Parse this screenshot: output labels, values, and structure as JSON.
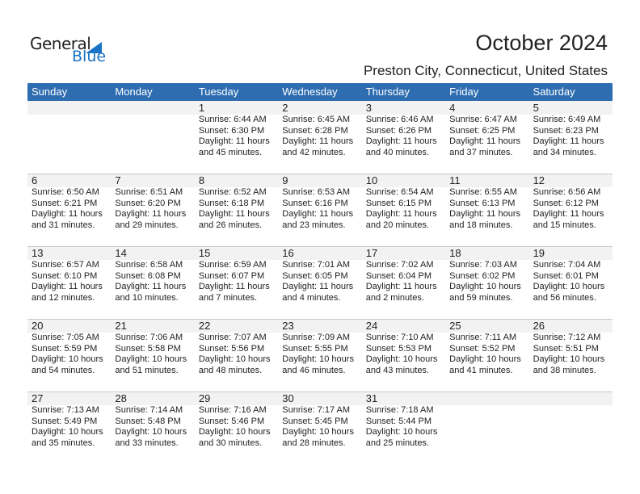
{
  "logo": {
    "general": "General",
    "blue": "Blue"
  },
  "title": "October 2024",
  "location": "Preston City, Connecticut, United States",
  "colors": {
    "header": "#2e6db0",
    "date_row": "#f2f2f2",
    "logo_blue": "#1a73c4"
  },
  "weekdays": [
    "Sunday",
    "Monday",
    "Tuesday",
    "Wednesday",
    "Thursday",
    "Friday",
    "Saturday"
  ],
  "weeks": [
    [
      null,
      null,
      {
        "day": "1",
        "sunrise": "Sunrise: 6:44 AM",
        "sunset": "Sunset: 6:30 PM",
        "daylight": "Daylight: 11 hours",
        "minutes": "and 45 minutes."
      },
      {
        "day": "2",
        "sunrise": "Sunrise: 6:45 AM",
        "sunset": "Sunset: 6:28 PM",
        "daylight": "Daylight: 11 hours",
        "minutes": "and 42 minutes."
      },
      {
        "day": "3",
        "sunrise": "Sunrise: 6:46 AM",
        "sunset": "Sunset: 6:26 PM",
        "daylight": "Daylight: 11 hours",
        "minutes": "and 40 minutes."
      },
      {
        "day": "4",
        "sunrise": "Sunrise: 6:47 AM",
        "sunset": "Sunset: 6:25 PM",
        "daylight": "Daylight: 11 hours",
        "minutes": "and 37 minutes."
      },
      {
        "day": "5",
        "sunrise": "Sunrise: 6:49 AM",
        "sunset": "Sunset: 6:23 PM",
        "daylight": "Daylight: 11 hours",
        "minutes": "and 34 minutes."
      }
    ],
    [
      {
        "day": "6",
        "sunrise": "Sunrise: 6:50 AM",
        "sunset": "Sunset: 6:21 PM",
        "daylight": "Daylight: 11 hours",
        "minutes": "and 31 minutes."
      },
      {
        "day": "7",
        "sunrise": "Sunrise: 6:51 AM",
        "sunset": "Sunset: 6:20 PM",
        "daylight": "Daylight: 11 hours",
        "minutes": "and 29 minutes."
      },
      {
        "day": "8",
        "sunrise": "Sunrise: 6:52 AM",
        "sunset": "Sunset: 6:18 PM",
        "daylight": "Daylight: 11 hours",
        "minutes": "and 26 minutes."
      },
      {
        "day": "9",
        "sunrise": "Sunrise: 6:53 AM",
        "sunset": "Sunset: 6:16 PM",
        "daylight": "Daylight: 11 hours",
        "minutes": "and 23 minutes."
      },
      {
        "day": "10",
        "sunrise": "Sunrise: 6:54 AM",
        "sunset": "Sunset: 6:15 PM",
        "daylight": "Daylight: 11 hours",
        "minutes": "and 20 minutes."
      },
      {
        "day": "11",
        "sunrise": "Sunrise: 6:55 AM",
        "sunset": "Sunset: 6:13 PM",
        "daylight": "Daylight: 11 hours",
        "minutes": "and 18 minutes."
      },
      {
        "day": "12",
        "sunrise": "Sunrise: 6:56 AM",
        "sunset": "Sunset: 6:12 PM",
        "daylight": "Daylight: 11 hours",
        "minutes": "and 15 minutes."
      }
    ],
    [
      {
        "day": "13",
        "sunrise": "Sunrise: 6:57 AM",
        "sunset": "Sunset: 6:10 PM",
        "daylight": "Daylight: 11 hours",
        "minutes": "and 12 minutes."
      },
      {
        "day": "14",
        "sunrise": "Sunrise: 6:58 AM",
        "sunset": "Sunset: 6:08 PM",
        "daylight": "Daylight: 11 hours",
        "minutes": "and 10 minutes."
      },
      {
        "day": "15",
        "sunrise": "Sunrise: 6:59 AM",
        "sunset": "Sunset: 6:07 PM",
        "daylight": "Daylight: 11 hours",
        "minutes": "and 7 minutes."
      },
      {
        "day": "16",
        "sunrise": "Sunrise: 7:01 AM",
        "sunset": "Sunset: 6:05 PM",
        "daylight": "Daylight: 11 hours",
        "minutes": "and 4 minutes."
      },
      {
        "day": "17",
        "sunrise": "Sunrise: 7:02 AM",
        "sunset": "Sunset: 6:04 PM",
        "daylight": "Daylight: 11 hours",
        "minutes": "and 2 minutes."
      },
      {
        "day": "18",
        "sunrise": "Sunrise: 7:03 AM",
        "sunset": "Sunset: 6:02 PM",
        "daylight": "Daylight: 10 hours",
        "minutes": "and 59 minutes."
      },
      {
        "day": "19",
        "sunrise": "Sunrise: 7:04 AM",
        "sunset": "Sunset: 6:01 PM",
        "daylight": "Daylight: 10 hours",
        "minutes": "and 56 minutes."
      }
    ],
    [
      {
        "day": "20",
        "sunrise": "Sunrise: 7:05 AM",
        "sunset": "Sunset: 5:59 PM",
        "daylight": "Daylight: 10 hours",
        "minutes": "and 54 minutes."
      },
      {
        "day": "21",
        "sunrise": "Sunrise: 7:06 AM",
        "sunset": "Sunset: 5:58 PM",
        "daylight": "Daylight: 10 hours",
        "minutes": "and 51 minutes."
      },
      {
        "day": "22",
        "sunrise": "Sunrise: 7:07 AM",
        "sunset": "Sunset: 5:56 PM",
        "daylight": "Daylight: 10 hours",
        "minutes": "and 48 minutes."
      },
      {
        "day": "23",
        "sunrise": "Sunrise: 7:09 AM",
        "sunset": "Sunset: 5:55 PM",
        "daylight": "Daylight: 10 hours",
        "minutes": "and 46 minutes."
      },
      {
        "day": "24",
        "sunrise": "Sunrise: 7:10 AM",
        "sunset": "Sunset: 5:53 PM",
        "daylight": "Daylight: 10 hours",
        "minutes": "and 43 minutes."
      },
      {
        "day": "25",
        "sunrise": "Sunrise: 7:11 AM",
        "sunset": "Sunset: 5:52 PM",
        "daylight": "Daylight: 10 hours",
        "minutes": "and 41 minutes."
      },
      {
        "day": "26",
        "sunrise": "Sunrise: 7:12 AM",
        "sunset": "Sunset: 5:51 PM",
        "daylight": "Daylight: 10 hours",
        "minutes": "and 38 minutes."
      }
    ],
    [
      {
        "day": "27",
        "sunrise": "Sunrise: 7:13 AM",
        "sunset": "Sunset: 5:49 PM",
        "daylight": "Daylight: 10 hours",
        "minutes": "and 35 minutes."
      },
      {
        "day": "28",
        "sunrise": "Sunrise: 7:14 AM",
        "sunset": "Sunset: 5:48 PM",
        "daylight": "Daylight: 10 hours",
        "minutes": "and 33 minutes."
      },
      {
        "day": "29",
        "sunrise": "Sunrise: 7:16 AM",
        "sunset": "Sunset: 5:46 PM",
        "daylight": "Daylight: 10 hours",
        "minutes": "and 30 minutes."
      },
      {
        "day": "30",
        "sunrise": "Sunrise: 7:17 AM",
        "sunset": "Sunset: 5:45 PM",
        "daylight": "Daylight: 10 hours",
        "minutes": "and 28 minutes."
      },
      {
        "day": "31",
        "sunrise": "Sunrise: 7:18 AM",
        "sunset": "Sunset: 5:44 PM",
        "daylight": "Daylight: 10 hours",
        "minutes": "and 25 minutes."
      },
      null,
      null
    ]
  ]
}
